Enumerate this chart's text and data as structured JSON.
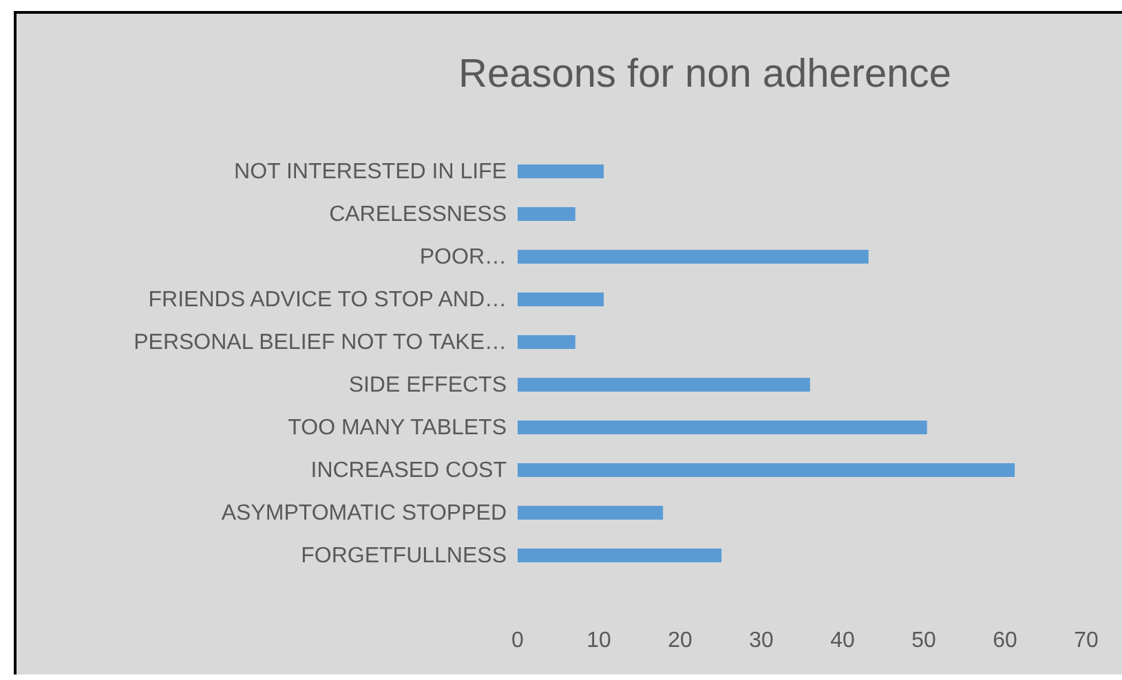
{
  "chart_data": {
    "type": "bar",
    "orientation": "horizontal",
    "title": "Reasons for non adherence",
    "categories": [
      "NOT INTERESTED IN LIFE",
      "CARELESSNESS",
      "POOR…",
      "FRIENDS ADVICE TO STOP AND…",
      "PERSONAL BELIEF NOT TO TAKE…",
      "SIDE EFFECTS",
      "TOO MANY TABLETS",
      "INCREASED COST",
      "ASYMPTOMATIC STOPPED",
      "FORGETFULLNESS"
    ],
    "values": [
      10.6,
      7.1,
      43.2,
      10.6,
      7.1,
      36,
      50.4,
      61.2,
      17.9,
      25.1
    ],
    "color": "#5b9bd5",
    "xlim": [
      0,
      70
    ],
    "xticks": [
      0,
      10,
      20,
      30,
      40,
      50,
      60,
      70
    ]
  }
}
